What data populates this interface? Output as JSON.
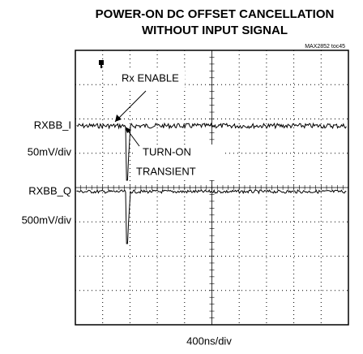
{
  "title": [
    "POWER-ON DC OFFSET CANCELLATION",
    "WITHOUT INPUT SIGNAL"
  ],
  "figure_id": "MAX2852 toc45",
  "channels": [
    {
      "name": "RXBB_I",
      "scale": "50mV/div"
    },
    {
      "name": "RXBB_Q",
      "scale": "500mV/div"
    }
  ],
  "annotations": {
    "enable": "Rx ENABLE",
    "transient": [
      "TURN-ON",
      "TRANSIENT"
    ]
  },
  "time_scale": "400ns/div"
}
